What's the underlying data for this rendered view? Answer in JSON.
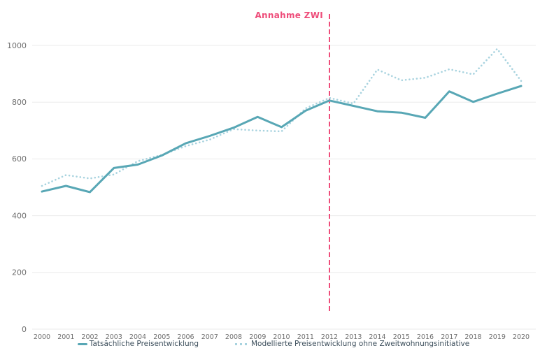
{
  "annotation": {
    "label": "Annahme ZWI",
    "color": "#ee4d7a"
  },
  "legend": [
    {
      "label": "Tatsächliche Preisentwicklung",
      "color": "#58a7b5",
      "style": "solid"
    },
    {
      "label": "Modellierte Preisentwicklung ohne Zweitwohnungsinitiative",
      "color": "#a8d3df",
      "style": "dotted"
    }
  ],
  "chart_data": {
    "type": "line",
    "title": "",
    "xlabel": "",
    "ylabel": "",
    "x": [
      2000,
      2001,
      2002,
      2003,
      2004,
      2005,
      2006,
      2007,
      2008,
      2009,
      2010,
      2011,
      2012,
      2013,
      2014,
      2015,
      2016,
      2017,
      2018,
      2019,
      2020
    ],
    "series": [
      {
        "name": "Tatsächliche Preisentwicklung",
        "style": "solid",
        "color": "#58a7b5",
        "values": [
          485,
          505,
          483,
          568,
          580,
          612,
          655,
          681,
          710,
          748,
          712,
          770,
          806,
          787,
          768,
          763,
          745,
          838,
          801,
          830,
          857
        ]
      },
      {
        "name": "Modellierte Preisentwicklung ohne Zweitwohnungsinitiative",
        "style": "dotted",
        "color": "#a8d3df",
        "values": [
          505,
          543,
          531,
          545,
          592,
          614,
          645,
          668,
          705,
          700,
          697,
          778,
          815,
          795,
          915,
          877,
          886,
          916,
          898,
          988,
          875
        ]
      }
    ],
    "annotation": {
      "label": "Annahme ZWI",
      "x": 2012
    },
    "ylim": [
      0,
      1000
    ],
    "yticks": [
      0,
      200,
      400,
      600,
      800,
      1000
    ],
    "grid": true,
    "legend_position": "bottom",
    "colors": {
      "annotation_line": "#ee4d7a",
      "gridline": "#ebebeb",
      "tick_text": "#6e6e6e"
    }
  }
}
